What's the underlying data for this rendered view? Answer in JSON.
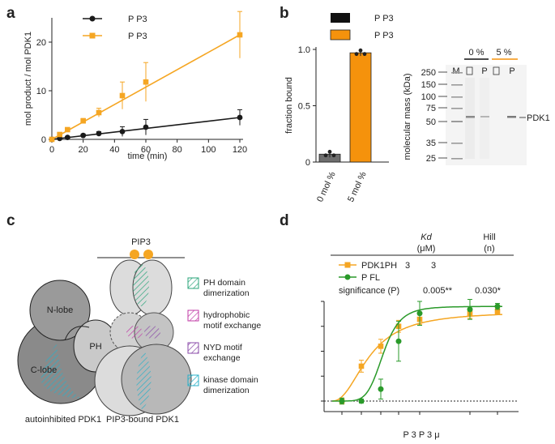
{
  "panels": {
    "a": {
      "letter": "a",
      "chart_data": {
        "type": "line",
        "xlabel": "time (min)",
        "ylabel": "mol product / mol PDK1",
        "xlim": [
          0,
          120
        ],
        "ylim": [
          0,
          25
        ],
        "xticks": [
          "0",
          "20",
          "40",
          "60",
          "80",
          "100",
          "120"
        ],
        "yticks": [
          "0",
          "10",
          "20"
        ],
        "legend": [
          "P P3",
          "P P3"
        ],
        "colors": [
          "#1a1a1a",
          "#f5a623"
        ],
        "series": [
          {
            "x": [
              0,
              5,
              10,
              20,
              30,
              45,
              60,
              120
            ],
            "y": [
              0,
              0.2,
              0.4,
              0.8,
              1.2,
              1.6,
              2.5,
              4.5
            ],
            "err": [
              0.1,
              0.1,
              0.2,
              0.3,
              0.4,
              1.0,
              1.6,
              1.6
            ]
          },
          {
            "x": [
              0,
              5,
              10,
              20,
              30,
              45,
              60,
              120
            ],
            "y": [
              0,
              1.0,
              2.0,
              3.8,
              5.5,
              9.0,
              11.8,
              21.5
            ],
            "err": [
              0.2,
              0.3,
              0.4,
              0.5,
              0.9,
              2.8,
              4.0,
              4.8
            ]
          }
        ]
      }
    },
    "b": {
      "letter": "b",
      "chart_data": {
        "type": "bar",
        "categories": [
          "0 mol %",
          "5 mol %"
        ],
        "values": [
          0.07,
          0.97
        ],
        "ylabel": "fraction bound",
        "ylim": [
          0,
          1.0
        ],
        "yticks": [
          "0",
          "0.5",
          "1.0"
        ],
        "legend": [
          "P P3",
          "P P3"
        ],
        "colors": [
          "#6e6e6e",
          "#f5920c"
        ]
      },
      "gel": {
        "ylabel": "molecular mass (kDa)",
        "marker_labels": [
          "250",
          "150",
          "100",
          "75",
          "50",
          "35",
          "25"
        ],
        "lane_labels": [
          "M",
          "",
          "P",
          "",
          "P"
        ],
        "group_labels": [
          "0 %",
          "5 %"
        ],
        "band_label": "PDK1"
      }
    },
    "c": {
      "letter": "c",
      "top_label": "PIP3",
      "nlobe": "N-lobe",
      "clobe": "C-lobe",
      "ph": "PH",
      "caption_left": "autoinhibited PDK1",
      "caption_right": "PIP3-bound PDK1",
      "legend": [
        {
          "label": "PH domain dimerization",
          "color": "#2aa57a"
        },
        {
          "label": "hydrophobic motif exchange",
          "color": "#c03aa6"
        },
        {
          "label": "NYD motif exchange",
          "color": "#8a4aa8"
        },
        {
          "label": "kinase domain dimerization",
          "color": "#2ab0c8"
        }
      ]
    },
    "d": {
      "letter": "d",
      "header_kd": "Kd",
      "header_kd_unit": "(μM)",
      "header_hill": "Hill",
      "header_hill_unit": "(n)",
      "row1_name": "PDK1PH",
      "row1_kd": "3",
      "row1_hill": "3",
      "row2_name": "P FL",
      "significance": "significance (P)",
      "sig_kd": "0.005**",
      "sig_hill": "0.030*",
      "xlabel": "P 3 P 3 μ",
      "chart_data": {
        "type": "scatter",
        "colors": [
          "#f5a623",
          "#2a9a2a"
        ],
        "series": [
          {
            "x": [
              0,
              1,
              2,
              3,
              4,
              5,
              8
            ],
            "y": [
              0.0,
              0.35,
              0.55,
              0.75,
              0.82,
              0.88,
              0.9
            ],
            "err": [
              0.03,
              0.06,
              0.07,
              0.06,
              0.05,
              0.05,
              0.03
            ]
          },
          {
            "x": [
              0,
              1,
              2,
              3,
              4,
              5,
              8
            ],
            "y": [
              0.0,
              0.0,
              0.12,
              0.6,
              0.88,
              0.92,
              0.95
            ],
            "err": [
              0.03,
              0.02,
              0.1,
              0.2,
              0.12,
              0.1,
              0.03
            ]
          }
        ]
      }
    }
  }
}
